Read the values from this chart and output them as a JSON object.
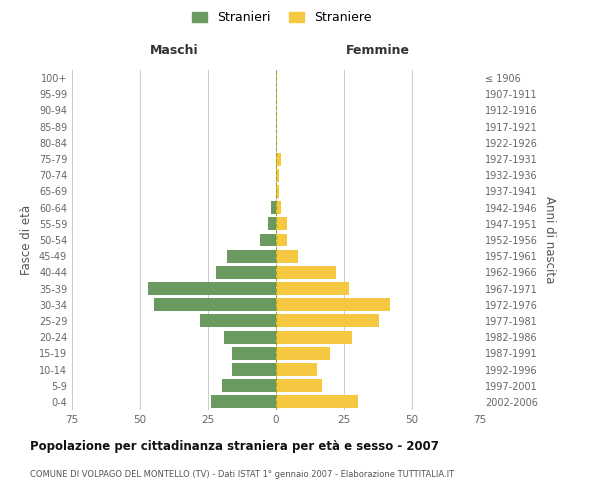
{
  "age_groups": [
    "0-4",
    "5-9",
    "10-14",
    "15-19",
    "20-24",
    "25-29",
    "30-34",
    "35-39",
    "40-44",
    "45-49",
    "50-54",
    "55-59",
    "60-64",
    "65-69",
    "70-74",
    "75-79",
    "80-84",
    "85-89",
    "90-94",
    "95-99",
    "100+"
  ],
  "birth_years": [
    "2002-2006",
    "1997-2001",
    "1992-1996",
    "1987-1991",
    "1982-1986",
    "1977-1981",
    "1972-1976",
    "1967-1971",
    "1962-1966",
    "1957-1961",
    "1952-1956",
    "1947-1951",
    "1942-1946",
    "1937-1941",
    "1932-1936",
    "1927-1931",
    "1922-1926",
    "1917-1921",
    "1912-1916",
    "1907-1911",
    "≤ 1906"
  ],
  "maschi": [
    24,
    20,
    16,
    16,
    19,
    28,
    45,
    47,
    22,
    18,
    6,
    3,
    2,
    0,
    0,
    0,
    0,
    0,
    0,
    0,
    0
  ],
  "femmine": [
    30,
    17,
    15,
    20,
    28,
    38,
    42,
    27,
    22,
    8,
    4,
    4,
    2,
    1,
    1,
    2,
    0,
    0,
    0,
    0,
    0
  ],
  "maschi_color": "#6a9a5f",
  "femmine_color": "#f5c842",
  "center_line_color": "#999900",
  "grid_color": "#cccccc",
  "bg_color": "#ffffff",
  "title": "Popolazione per cittadinanza straniera per età e sesso - 2007",
  "subtitle": "COMUNE DI VOLPAGO DEL MONTELLO (TV) - Dati ISTAT 1° gennaio 2007 - Elaborazione TUTTITALIA.IT",
  "ylabel_left": "Fasce di età",
  "ylabel_right": "Anni di nascita",
  "xlabel_left": "Maschi",
  "xlabel_right": "Femmine",
  "legend_maschi": "Stranieri",
  "legend_femmine": "Straniere",
  "xlim": 75,
  "xticks": [
    -75,
    -50,
    -25,
    0,
    25,
    50,
    75
  ]
}
